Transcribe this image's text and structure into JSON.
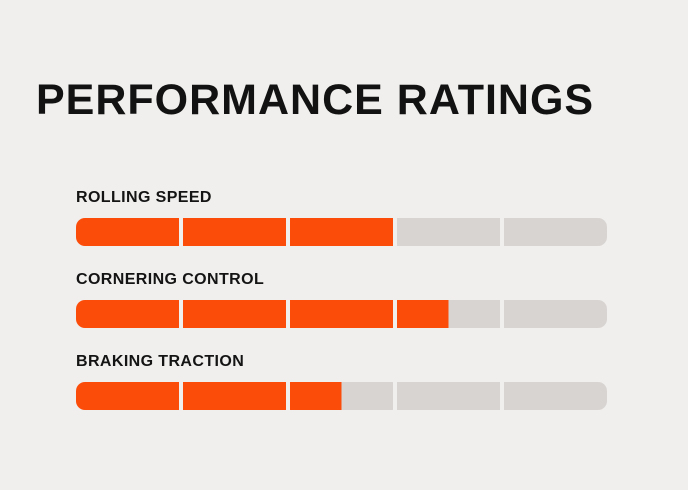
{
  "page": {
    "background": "#F0EFED"
  },
  "header": {
    "title": "PERFORMANCE RATINGS"
  },
  "chart_data": {
    "type": "bar",
    "orientation": "horizontal",
    "title": "PERFORMANCE RATINGS",
    "categories": [
      "ROLLING SPEED",
      "CORNERING CONTROL",
      "BRAKING TRACTION"
    ],
    "values": [
      3,
      3.5,
      2.5
    ],
    "max": 5,
    "segments_per_bar": 5,
    "legend": "none",
    "grid": false,
    "colors": {
      "filled": "#FB4C0A",
      "empty": "#D7D4D2",
      "text": "#141414",
      "background": "#F0EFED"
    }
  },
  "ratings": [
    {
      "label": "ROLLING SPEED",
      "value": 3,
      "max": 5
    },
    {
      "label": "CORNERING CONTROL",
      "value": 3.5,
      "max": 5
    },
    {
      "label": "BRAKING TRACTION",
      "value": 2.5,
      "max": 5
    }
  ]
}
